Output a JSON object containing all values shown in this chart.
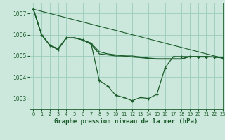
{
  "background_color": "#cce8dc",
  "grid_color": "#99ccbb",
  "line_color": "#1a5c2a",
  "xlabel": "Graphe pression niveau de la mer (hPa)",
  "xlabel_fontsize": 6.5,
  "ylim": [
    1002.5,
    1007.5
  ],
  "xlim": [
    -0.5,
    23
  ],
  "yticks": [
    1003,
    1004,
    1005,
    1006,
    1007
  ],
  "xticks": [
    0,
    1,
    2,
    3,
    4,
    5,
    6,
    7,
    8,
    9,
    10,
    11,
    12,
    13,
    14,
    15,
    16,
    17,
    18,
    19,
    20,
    21,
    22,
    23
  ],
  "series": [
    {
      "x": [
        0,
        23
      ],
      "y": [
        1007.2,
        1004.9
      ],
      "marker": false,
      "lw": 0.8
    },
    {
      "x": [
        0,
        1,
        2,
        3,
        4,
        5,
        6,
        7,
        8,
        9,
        10,
        11,
        12,
        13,
        14,
        15,
        16,
        17,
        18,
        19,
        20,
        21,
        22,
        23
      ],
      "y": [
        1007.2,
        1006.0,
        1005.5,
        1005.35,
        1005.85,
        1005.85,
        1005.75,
        1005.55,
        1005.1,
        1005.05,
        1005.0,
        1005.0,
        1004.95,
        1004.92,
        1004.88,
        1004.85,
        1004.85,
        1004.85,
        1004.85,
        1004.97,
        1004.97,
        1004.97,
        1004.95,
        1004.92
      ],
      "marker": false,
      "lw": 0.9
    },
    {
      "x": [
        0,
        1,
        2,
        3,
        4,
        5,
        6,
        7,
        8,
        9,
        10,
        11,
        12,
        13,
        14,
        15,
        16,
        17,
        18,
        19,
        20,
        21,
        22,
        23
      ],
      "y": [
        1007.2,
        1006.0,
        1005.5,
        1005.3,
        1005.85,
        1005.85,
        1005.75,
        1005.6,
        1005.2,
        1005.1,
        1005.05,
        1005.0,
        1005.0,
        1004.95,
        1004.9,
        1004.87,
        1004.87,
        1004.87,
        1004.87,
        1004.97,
        1004.97,
        1004.97,
        1004.95,
        1004.92
      ],
      "marker": false,
      "lw": 0.9
    },
    {
      "x": [
        0,
        1,
        2,
        3,
        4,
        5,
        6,
        7,
        8,
        9,
        10,
        11,
        12,
        13,
        14,
        15,
        16,
        17,
        18,
        19,
        20,
        21,
        22,
        23
      ],
      "y": [
        1007.2,
        1006.0,
        1005.5,
        1005.3,
        1005.85,
        1005.85,
        1005.75,
        1005.6,
        1003.85,
        1003.6,
        1003.15,
        1003.05,
        1002.9,
        1003.05,
        1003.0,
        1003.2,
        1004.45,
        1004.97,
        1004.97,
        1004.97,
        1004.95,
        1004.95,
        1004.95,
        1004.9
      ],
      "marker": true,
      "lw": 0.9
    }
  ]
}
